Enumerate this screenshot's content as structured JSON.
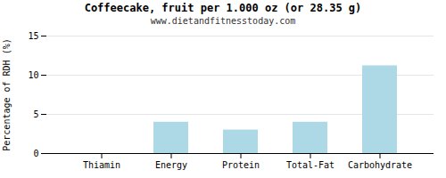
{
  "chart_data": {
    "type": "bar",
    "title": "Coffeecake, fruit per 1.000 oz (or 28.35 g)",
    "subtitle": "www.dietandfitnesstoday.com",
    "categories": [
      "Thiamin",
      "Energy",
      "Protein",
      "Total-Fat",
      "Carbohydrate"
    ],
    "values": [
      0,
      4.0,
      3.0,
      4.0,
      11.2
    ],
    "color": "#add8e6",
    "ylabel": "Percentage of RDH (%)",
    "ylim": [
      0,
      15
    ],
    "yticks": [
      0,
      5,
      10,
      15
    ],
    "grid": true
  }
}
